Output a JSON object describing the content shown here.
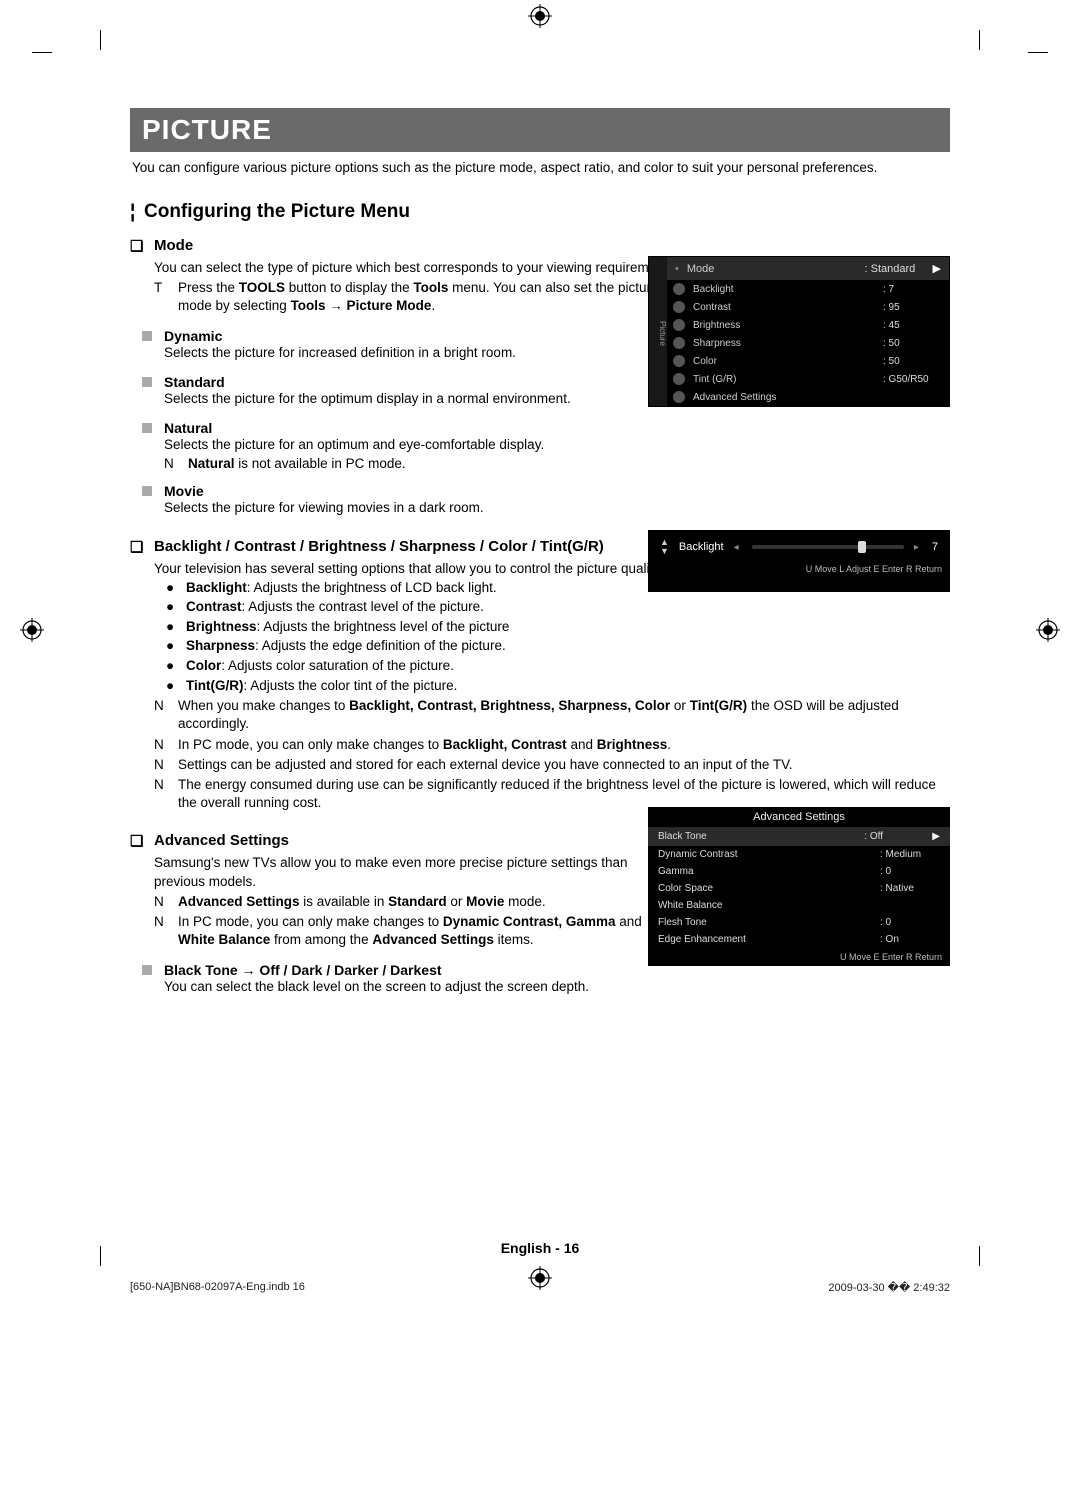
{
  "title": "PICTURE",
  "intro": "You can configure various picture options such as the picture mode, aspect ratio, and color to suit your personal preferences.",
  "section_heading": "Configuring the Picture Menu",
  "mode": {
    "heading": "Mode",
    "desc": "You can select the type of picture which best corresponds to your viewing requirements.",
    "tools_marker": "T",
    "tools_text_1": "Press the ",
    "tools_bold_1": "TOOLS",
    "tools_text_2": " button to display the ",
    "tools_bold_2": "Tools",
    "tools_text_3": " menu. You can also set the picture mode by selecting ",
    "tools_bold_3": "Tools → Picture Mode",
    "tools_text_4": ".",
    "items": [
      {
        "name": "Dynamic",
        "desc": "Selects the picture for increased definition in a bright room."
      },
      {
        "name": "Standard",
        "desc": "Selects the picture for the optimum display in a normal environment."
      },
      {
        "name": "Natural",
        "desc": "Selects the picture for an optimum and eye-comfortable display.",
        "note_marker": "N",
        "note_bold": "Natural",
        "note_rest": " is not available in PC mode."
      },
      {
        "name": "Movie",
        "desc": "Selects the picture for viewing movies in a dark room."
      }
    ]
  },
  "settings": {
    "heading": "Backlight / Contrast / Brightness / Sharpness / Color / Tint(G/R)",
    "intro": "Your television has several setting options that allow you to control the picture quality.",
    "bullets": [
      {
        "b": "Backlight",
        "r": ": Adjusts the brightness of LCD back light."
      },
      {
        "b": "Contrast",
        "r": ": Adjusts the contrast level of the picture."
      },
      {
        "b": "Brightness",
        "r": ": Adjusts the brightness level of the picture"
      },
      {
        "b": "Sharpness",
        "r": ": Adjusts the edge definition of the picture."
      },
      {
        "b": "Color",
        "r": ": Adjusts color saturation of the picture."
      },
      {
        "b": "Tint(G/R)",
        "r": ": Adjusts the color tint of the picture."
      }
    ],
    "notes": [
      {
        "m": "N",
        "pre": "When you make changes to ",
        "b": "Backlight, Contrast, Brightness, Sharpness, Color",
        "mid": " or ",
        "b2": "Tint(G/R)",
        "post": " the OSD will be adjusted accordingly."
      },
      {
        "m": "N",
        "pre": "In PC mode, you can only make changes to ",
        "b": "Backlight, Contrast",
        "mid": " and ",
        "b2": "Brightness",
        "post": "."
      },
      {
        "m": "N",
        "pre": "Settings can be adjusted and stored for each external device you have connected to an input of the TV.",
        "b": "",
        "mid": "",
        "b2": "",
        "post": ""
      },
      {
        "m": "N",
        "pre": "The energy consumed during use can be significantly reduced if the brightness level of the picture is lowered, which will reduce the overall running cost.",
        "b": "",
        "mid": "",
        "b2": "",
        "post": ""
      }
    ]
  },
  "advanced": {
    "heading": "Advanced Settings",
    "intro": "Samsung's new TVs allow you to make even more precise picture settings than previous models.",
    "note1_marker": "N",
    "note1_b1": "Advanced Settings",
    "note1_mid": " is available in ",
    "note1_b2": "Standard",
    "note1_or": " or ",
    "note1_b3": "Movie",
    "note1_end": " mode.",
    "note2_marker": "N",
    "note2_pre": "In PC mode, you can only make changes to ",
    "note2_b1": "Dynamic Contrast, Gamma",
    "note2_and": " and ",
    "note2_b2": "White Balance",
    "note2_mid": " from among the ",
    "note2_b3": "Advanced Settings",
    "note2_end": " items.",
    "sub_heading": "Black Tone → Off / Dark / Darker / Darkest",
    "sub_desc": "You can select the black level on the screen to adjust the screen depth."
  },
  "osd1": {
    "sidebar": "Picture",
    "rows": [
      {
        "label": "Mode",
        "val": ": Standard",
        "hl": true,
        "arrow": "▶",
        "dot": true
      },
      {
        "label": "Backlight",
        "val": ": 7"
      },
      {
        "label": "Contrast",
        "val": ": 95"
      },
      {
        "label": "Brightness",
        "val": ": 45"
      },
      {
        "label": "Sharpness",
        "val": ": 50"
      },
      {
        "label": "Color",
        "val": ": 50"
      },
      {
        "label": "Tint (G/R)",
        "val": ": G50/R50"
      },
      {
        "label": "Advanced Settings",
        "val": ""
      }
    ]
  },
  "osd2": {
    "label": "Backlight",
    "value": "7",
    "thumb_percent": 70,
    "footer": "U Move   L Adjust   E Enter   R Return"
  },
  "osd3": {
    "title": "Advanced Settings",
    "rows": [
      {
        "label": "Black Tone",
        "val": ": Off",
        "hl": true,
        "arrow": "▶"
      },
      {
        "label": "Dynamic Contrast",
        "val": ": Medium"
      },
      {
        "label": "Gamma",
        "val": ": 0"
      },
      {
        "label": "Color Space",
        "val": ": Native"
      },
      {
        "label": "White Balance",
        "val": ""
      },
      {
        "label": "Flesh Tone",
        "val": ": 0"
      },
      {
        "label": "Edge Enhancement",
        "val": ": On"
      }
    ],
    "footer": "U Move   E Enter   R Return"
  },
  "footer_page": "English - 16",
  "print_left": "[650-NA]BN68-02097A-Eng.indb   16",
  "print_right": "2009-03-30   �� 2:49:32"
}
